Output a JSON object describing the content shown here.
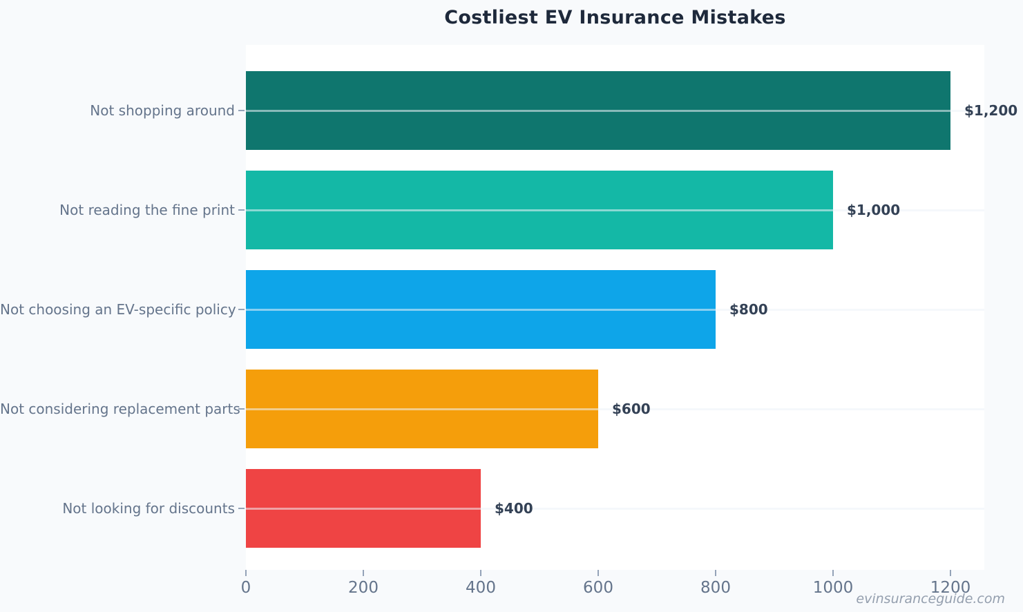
{
  "page": {
    "background_color": "#f8fafc",
    "plot_background_color": "#ffffff"
  },
  "chart_data": {
    "type": "bar",
    "orientation": "horizontal",
    "title": "Costliest EV Insurance Mistakes",
    "categories": [
      "Not shopping around",
      "Not reading the fine print",
      "Not choosing an EV-specific policy",
      "Not considering replacement parts",
      "Not looking for discounts"
    ],
    "values": [
      1200,
      1000,
      800,
      600,
      400
    ],
    "value_labels": [
      "$1,200",
      "$1,000",
      "$800",
      "$600",
      "$400"
    ],
    "bar_colors": [
      "#0f766e",
      "#14b8a6",
      "#0ea5e9",
      "#f59e0b",
      "#ef4444"
    ],
    "x_ticks": [
      0,
      200,
      400,
      600,
      800,
      1000,
      1200
    ],
    "x_tick_labels": [
      "0",
      "200",
      "400",
      "600",
      "800",
      "1000",
      "1200"
    ],
    "xlim": [
      0,
      1257
    ],
    "xlabel": "",
    "ylabel": "",
    "grid": "horizontal-row-lines",
    "legend": "none",
    "title_color": "#1e293b",
    "label_color": "#64748b",
    "value_label_color": "#334155",
    "tick_color": "#94a3b8"
  },
  "watermark": "evinsuranceguide.com"
}
